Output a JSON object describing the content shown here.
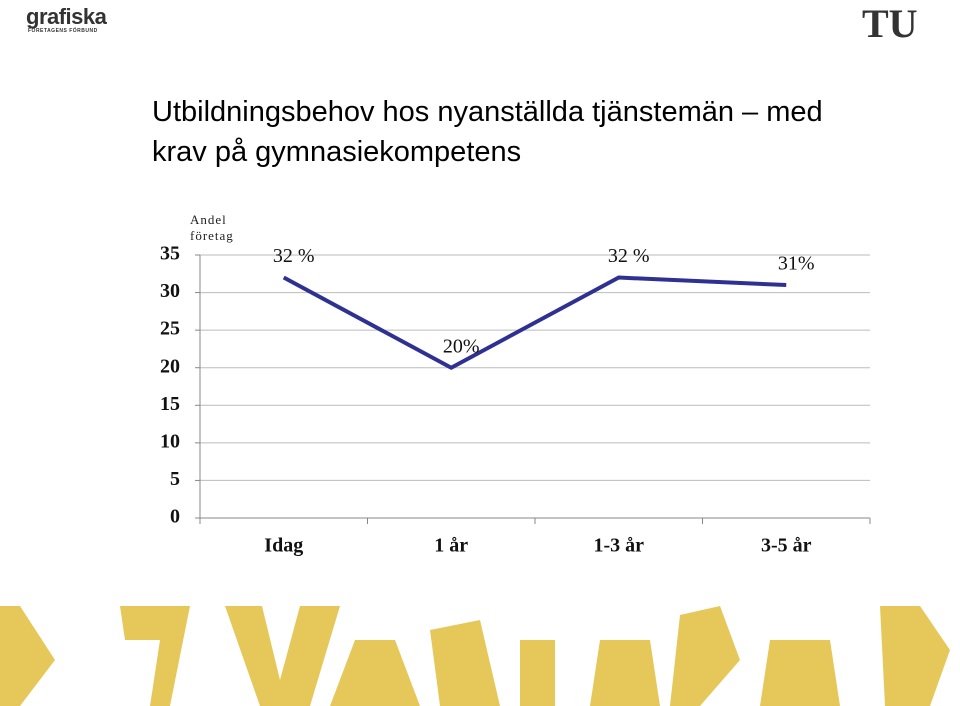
{
  "logos": {
    "left": "grafiska",
    "left_sub": "FÖRETAGENS FÖRBUND",
    "right": "TU"
  },
  "chart_data": {
    "type": "line",
    "title": "Utbildningsbehov hos nyanställda tjänstemän – med krav på gymnasiekompetens",
    "y_label": "Andel företag",
    "categories": [
      "Idag",
      "1 år",
      "1-3 år",
      "3-5 år"
    ],
    "series": [
      {
        "color": "#2e3192",
        "values": [
          32,
          20,
          32,
          31
        ],
        "value_labels": [
          "32 %",
          "20%",
          "32 %",
          "31%"
        ]
      }
    ],
    "ylim": [
      0,
      35
    ],
    "yticks": [
      0,
      5,
      10,
      15,
      20,
      25,
      30,
      35
    ],
    "grid": true
  }
}
